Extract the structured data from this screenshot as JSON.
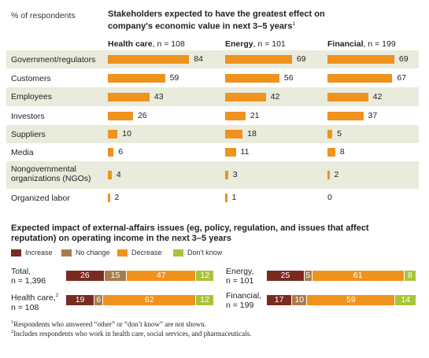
{
  "unit_label": "% of respondents",
  "title": "Stakeholders expected to have the greatest effect on company's economic value in next 3–5 years",
  "title_footnote": "1",
  "chart_data": [
    {
      "type": "bar",
      "title": "Stakeholders expected to have the greatest effect on company's economic value in next 3–5 years",
      "ylabel": "% of respondents",
      "categories": [
        "Government/regulators",
        "Customers",
        "Employees",
        "Investors",
        "Suppliers",
        "Media",
        "Nongovernmental organizations (NGOs)",
        "Organized labor"
      ],
      "series": [
        {
          "name": "Health care, n = 108",
          "values": [
            84,
            59,
            43,
            26,
            10,
            6,
            4,
            2
          ]
        },
        {
          "name": "Energy, n = 101",
          "values": [
            69,
            56,
            42,
            21,
            18,
            11,
            3,
            1
          ]
        },
        {
          "name": "Financial, n = 199",
          "values": [
            69,
            67,
            42,
            37,
            5,
            8,
            2,
            0
          ]
        }
      ],
      "ylim": [
        0,
        100
      ],
      "color": "#f0921e"
    },
    {
      "type": "bar",
      "stacked": true,
      "title": "Expected impact of external-affairs issues (eg, policy, regulation, and issues that affect reputation) on operating income in the next 3–5 years",
      "categories": [
        "Total, n = 1,396",
        "Health care, n = 108",
        "Energy, n = 101",
        "Financial, n = 199"
      ],
      "series": [
        {
          "name": "Increase",
          "values": [
            26,
            19,
            25,
            17
          ],
          "color": "#7a2b1f"
        },
        {
          "name": "No change",
          "values": [
            15,
            6,
            5,
            10
          ],
          "color": "#a87d4d"
        },
        {
          "name": "Decrease",
          "values": [
            47,
            62,
            61,
            59
          ],
          "color": "#f0921e"
        },
        {
          "name": "Don't know",
          "values": [
            12,
            12,
            8,
            14
          ],
          "color": "#a8c43a"
        }
      ]
    }
  ],
  "columns": [
    {
      "name": "Health care",
      "n": ", n = 108"
    },
    {
      "name": "Energy",
      "n": ", n = 101"
    },
    {
      "name": "Financial",
      "n": ", n = 199"
    }
  ],
  "rows": [
    {
      "label": "Government/regulators"
    },
    {
      "label": "Customers"
    },
    {
      "label": "Employees"
    },
    {
      "label": "Investors"
    },
    {
      "label": "Suppliers"
    },
    {
      "label": "Media"
    },
    {
      "label": "Nongovernmental organizations (NGOs)"
    },
    {
      "label": "Organized labor"
    }
  ],
  "section2_title": "Expected impact of external-affairs issues (eg, policy, regulation, and issues that affect reputation) on operating income in the next 3–5 years",
  "legend": [
    {
      "label": "Increase",
      "color": "#7a2b1f"
    },
    {
      "label": "No change",
      "color": "#a87d4d"
    },
    {
      "label": "Decrease",
      "color": "#f0921e"
    },
    {
      "label": "Don't know",
      "color": "#a8c43a"
    }
  ],
  "stacks": [
    {
      "label": "Total, n = 1,396"
    },
    {
      "label": "Health care, n = 108",
      "footnote": "2"
    },
    {
      "label": "Energy, n = 101"
    },
    {
      "label": "Financial, n = 199"
    }
  ],
  "footnotes": [
    {
      "mark": "1",
      "text": "Respondents who answered “other” or “don’t know” are not shown."
    },
    {
      "mark": "2",
      "text": "Includes respondents who work in health care, social services, and pharmaceuticals."
    }
  ]
}
